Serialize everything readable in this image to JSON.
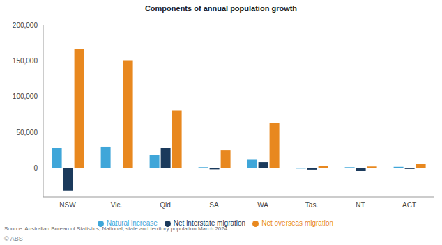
{
  "chart_data": {
    "type": "bar",
    "title": "Components of annual population growth",
    "source": "Source: Australian Bureau of Statistics, National, state and territory population March 2024",
    "credit": "© ABS",
    "categories": [
      "NSW",
      "Vic.",
      "Qld",
      "SA",
      "WA",
      "Tas.",
      "NT",
      "ACT"
    ],
    "series": [
      {
        "name": "Natural increase",
        "color": "#3fa6d9",
        "values": [
          29000,
          30000,
          19000,
          1500,
          12000,
          -500,
          1500,
          2000
        ]
      },
      {
        "name": "Net interstate migration",
        "color": "#1b3a5c",
        "values": [
          -31000,
          500,
          29000,
          -1500,
          8500,
          -2000,
          -3000,
          -1000
        ]
      },
      {
        "name": "Net overseas migration",
        "color": "#e8881f",
        "values": [
          167000,
          151000,
          81000,
          25000,
          63000,
          3500,
          2500,
          6000
        ]
      }
    ],
    "ylim": [
      -40000,
      200000
    ],
    "yticks": [
      0,
      {
        "value": 50000,
        "label": "50,000"
      },
      {
        "value": 100000,
        "label": "100,000"
      },
      {
        "value": 150000,
        "label": "150,000"
      },
      {
        "value": 200000,
        "label": "200,000"
      }
    ],
    "grid": false,
    "legend": "bottom"
  }
}
